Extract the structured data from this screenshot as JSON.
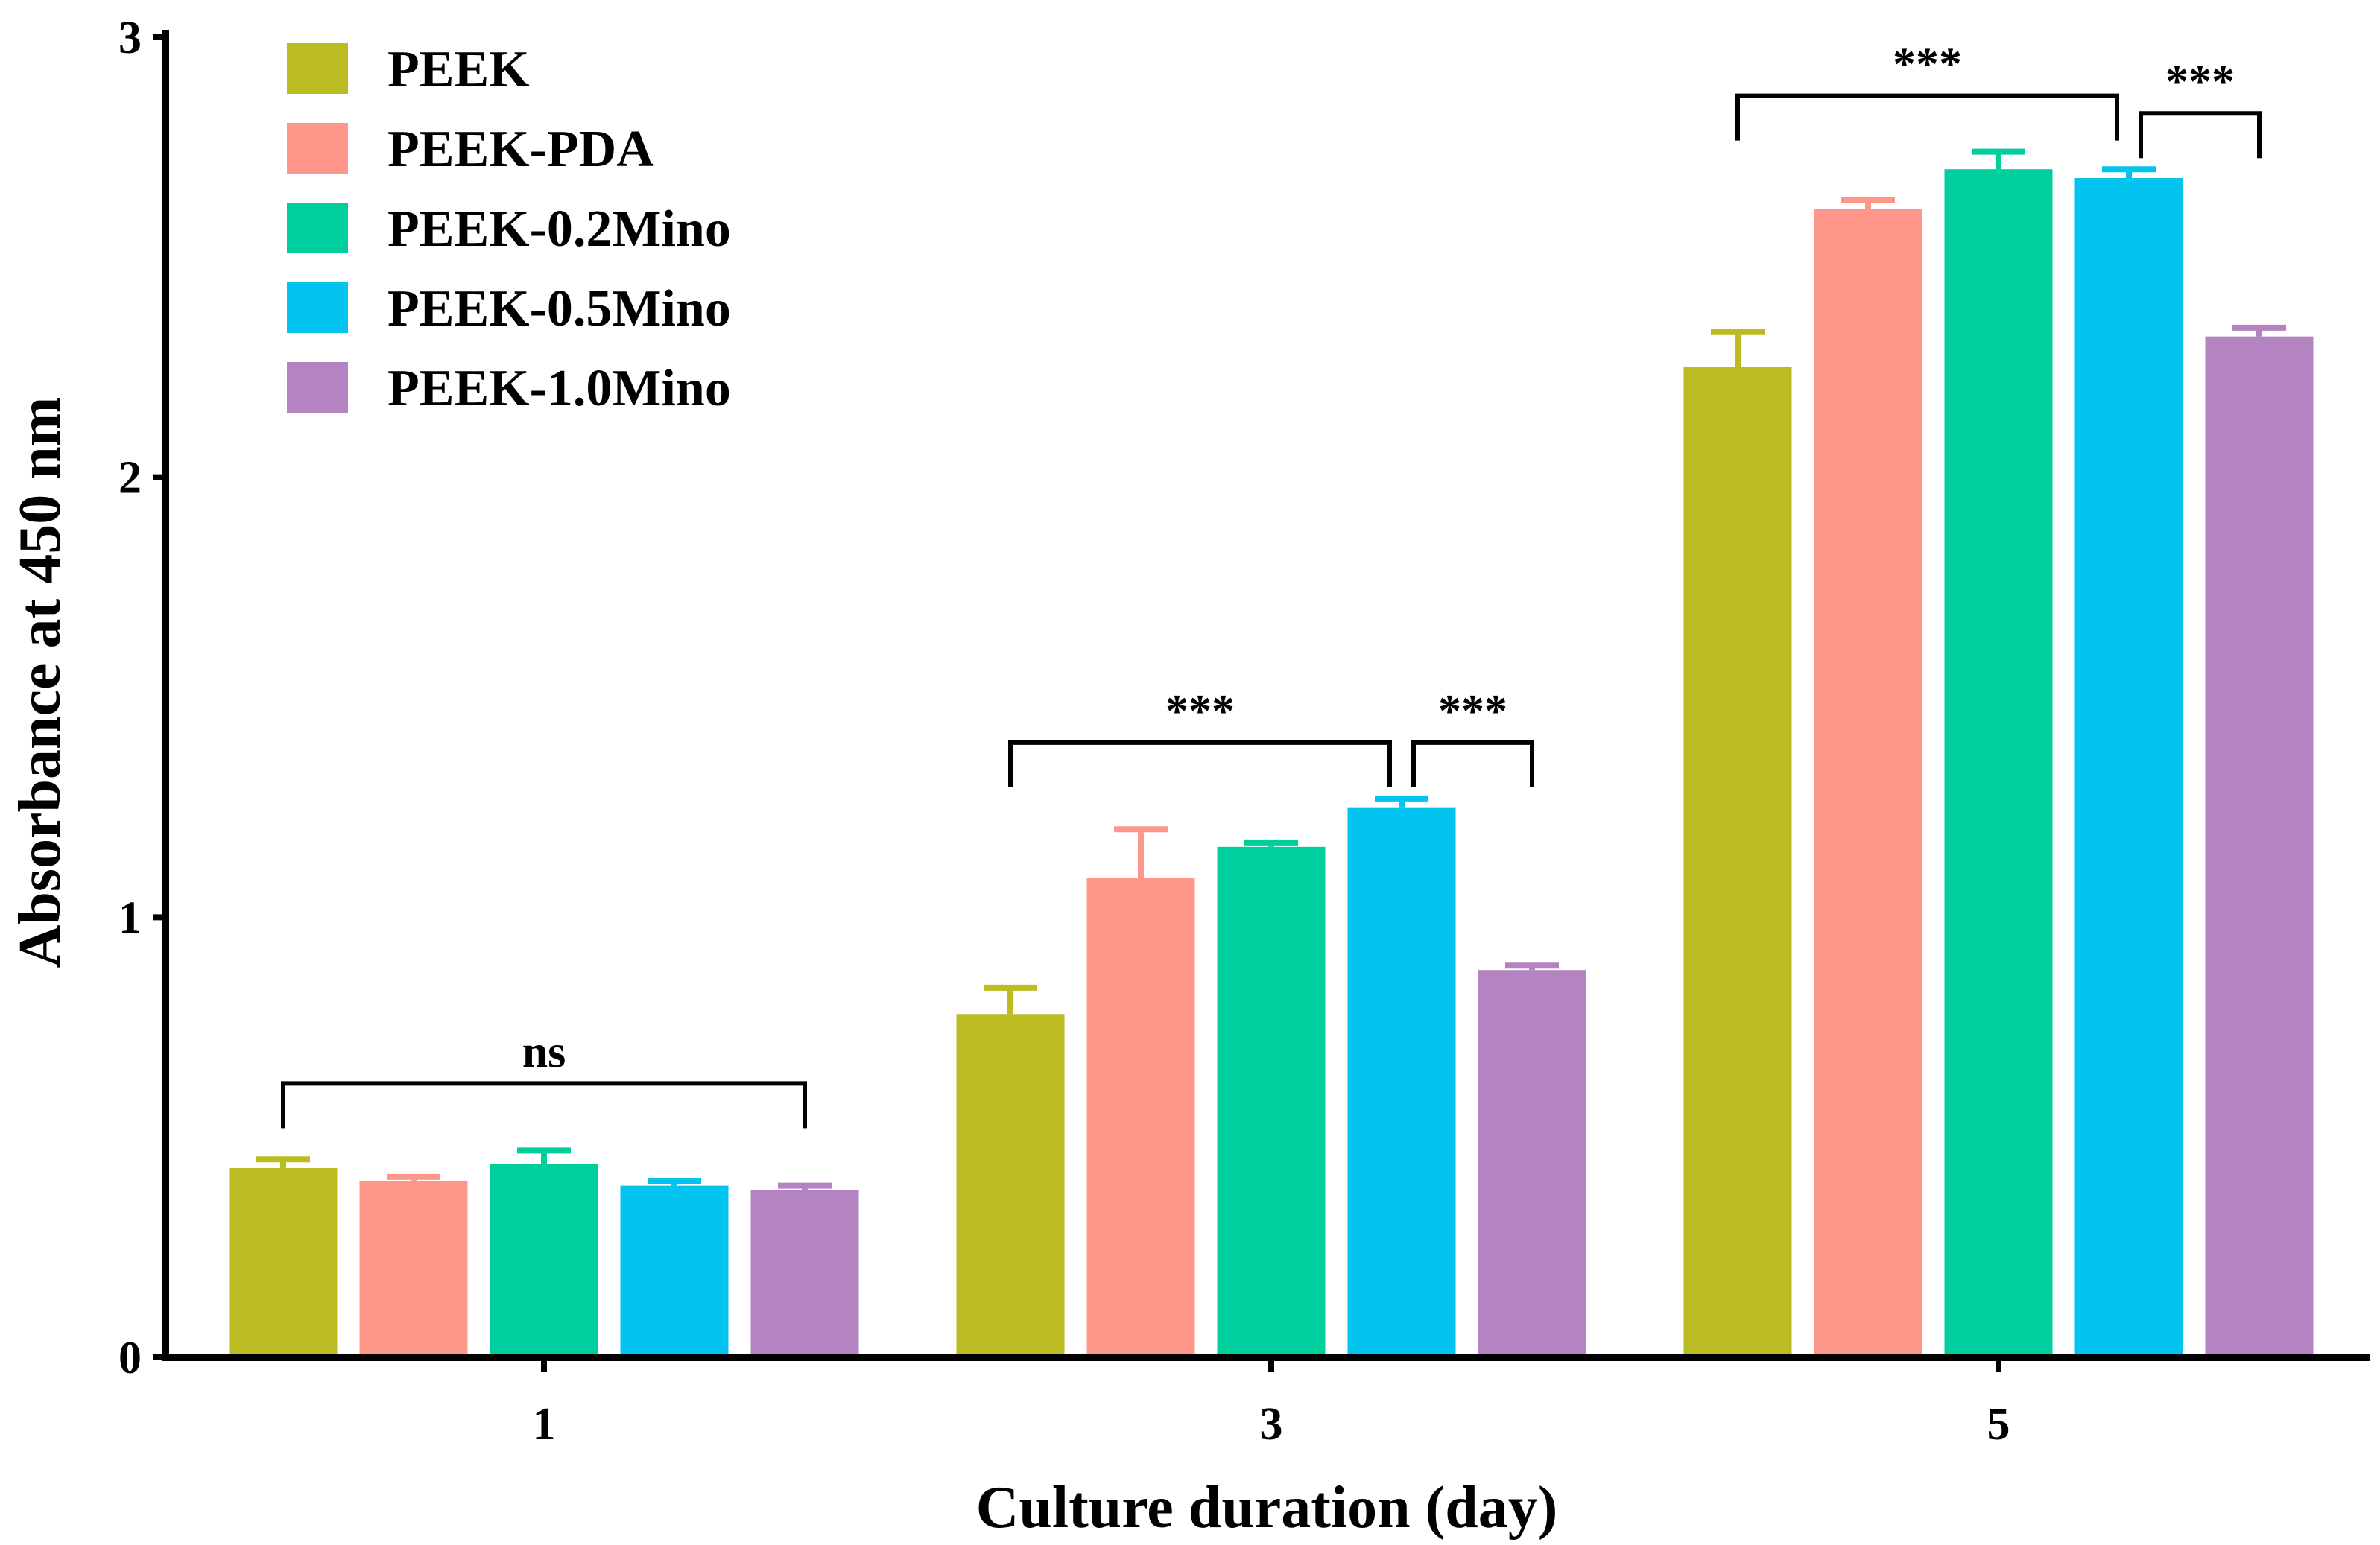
{
  "chart_data": {
    "type": "bar",
    "title": "",
    "xlabel": "Culture duration (day)",
    "ylabel": "Absorbance at 450 nm",
    "ylim": [
      0,
      3
    ],
    "yticks": [
      "0",
      "1",
      "2",
      "3"
    ],
    "categories": [
      "1",
      "3",
      "5"
    ],
    "series": [
      {
        "name": "PEEK",
        "color": "#bbbb22",
        "values": [
          0.43,
          0.78,
          2.25
        ],
        "errors": [
          0.02,
          0.06,
          0.08
        ]
      },
      {
        "name": "PEEK-PDA",
        "color": "#fe978a",
        "values": [
          0.4,
          1.09,
          2.61
        ],
        "errors": [
          0.01,
          0.11,
          0.02
        ]
      },
      {
        "name": "PEEK-0.2Mino",
        "color": "#00ce9d",
        "values": [
          0.44,
          1.16,
          2.7
        ],
        "errors": [
          0.03,
          0.01,
          0.04
        ]
      },
      {
        "name": "PEEK-0.5Mino",
        "color": "#02c4ee",
        "values": [
          0.39,
          1.25,
          2.68
        ],
        "errors": [
          0.01,
          0.02,
          0.02
        ]
      },
      {
        "name": "PEEK-1.0Mino",
        "color": "#b483c1",
        "values": [
          0.38,
          0.88,
          2.32
        ],
        "errors": [
          0.01,
          0.01,
          0.02
        ]
      }
    ],
    "significance": [
      {
        "category": "1",
        "from": "PEEK",
        "to": "PEEK-1.0Mino",
        "label": "ns"
      },
      {
        "category": "3",
        "from": "PEEK",
        "to": "PEEK-0.5Mino",
        "label": "***"
      },
      {
        "category": "3",
        "from": "PEEK-0.5Mino",
        "to": "PEEK-1.0Mino",
        "label": "***"
      },
      {
        "category": "5",
        "from": "PEEK",
        "to": "PEEK-0.5Mino",
        "label": "***"
      },
      {
        "category": "5",
        "from": "PEEK-0.5Mino",
        "to": "PEEK-1.0Mino",
        "label": "***"
      }
    ],
    "legend_position": "top-left"
  }
}
